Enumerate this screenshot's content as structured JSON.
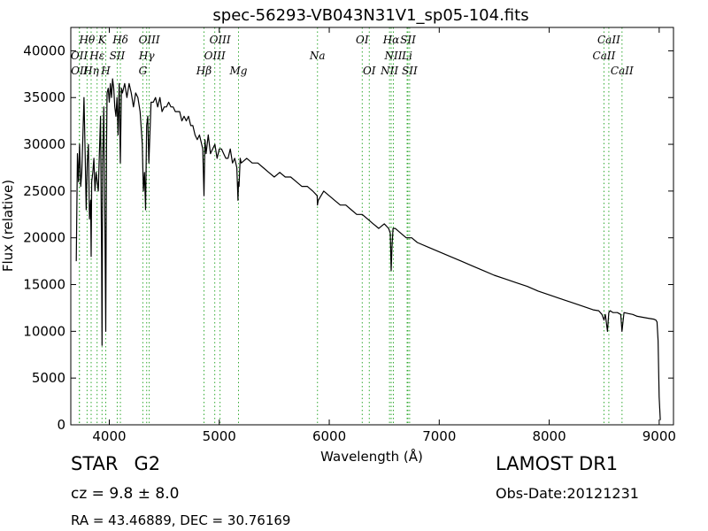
{
  "chart_data": {
    "type": "line",
    "title": "spec-56293-VB043N31V1_sp05-104.fits",
    "xlabel": "Wavelength (Å)",
    "ylabel": "Flux (relative)",
    "xlim": [
      3650,
      9130
    ],
    "ylim": [
      0,
      42500
    ],
    "x_ticks": [
      4000,
      5000,
      6000,
      7000,
      8000,
      9000
    ],
    "y_ticks": [
      0,
      5000,
      10000,
      15000,
      20000,
      25000,
      30000,
      35000,
      40000
    ],
    "grid": false,
    "line_color": "#000000",
    "marker_color": "#33aa33",
    "series": [
      {
        "x": [
          3700,
          3710,
          3720,
          3730,
          3740,
          3750,
          3760,
          3770,
          3780,
          3790,
          3800,
          3810,
          3820,
          3830,
          3835,
          3840,
          3850,
          3860,
          3870,
          3880,
          3890,
          3900,
          3910,
          3920,
          3930,
          3934,
          3940,
          3950,
          3960,
          3968,
          3975,
          3980,
          3990,
          4000,
          4010,
          4020,
          4030,
          4040,
          4050,
          4060,
          4070,
          4080,
          4090,
          4101,
          4110,
          4120,
          4140,
          4160,
          4180,
          4200,
          4220,
          4240,
          4260,
          4280,
          4300,
          4310,
          4320,
          4330,
          4340,
          4350,
          4360,
          4380,
          4400,
          4420,
          4440,
          4460,
          4480,
          4500,
          4520,
          4540,
          4560,
          4580,
          4600,
          4620,
          4640,
          4660,
          4680,
          4700,
          4720,
          4740,
          4760,
          4780,
          4800,
          4820,
          4840,
          4850,
          4861,
          4870,
          4880,
          4900,
          4920,
          4940,
          4960,
          4980,
          5000,
          5020,
          5040,
          5060,
          5080,
          5100,
          5120,
          5140,
          5160,
          5170,
          5175,
          5180,
          5190,
          5200,
          5250,
          5300,
          5350,
          5400,
          5450,
          5500,
          5550,
          5600,
          5650,
          5700,
          5750,
          5800,
          5850,
          5890,
          5893,
          5900,
          5950,
          6000,
          6050,
          6100,
          6150,
          6200,
          6250,
          6300,
          6350,
          6400,
          6450,
          6500,
          6540,
          6555,
          6563,
          6570,
          6580,
          6600,
          6650,
          6700,
          6750,
          6800,
          6900,
          7000,
          7100,
          7200,
          7300,
          7400,
          7500,
          7600,
          7700,
          7800,
          7900,
          8000,
          8100,
          8200,
          8300,
          8400,
          8450,
          8480,
          8498,
          8510,
          8530,
          8542,
          8555,
          8580,
          8620,
          8650,
          8662,
          8680,
          8720,
          8760,
          8800,
          8850,
          8900,
          8950,
          8970,
          8980,
          8990,
          9000,
          9010
        ],
        "y": [
          17500,
          29000,
          26000,
          30000,
          25500,
          27000,
          31000,
          35000,
          29000,
          23000,
          28000,
          30000,
          22000,
          24000,
          18000,
          26000,
          27000,
          28500,
          25000,
          27000,
          26000,
          25000,
          29000,
          33000,
          18000,
          8500,
          28000,
          34000,
          22000,
          10000,
          30000,
          35500,
          36000,
          34500,
          36500,
          35000,
          37000,
          36000,
          34000,
          33000,
          35000,
          31000,
          36500,
          28000,
          36000,
          35500,
          36500,
          35000,
          36500,
          35500,
          34000,
          35500,
          35000,
          33500,
          30000,
          25000,
          27000,
          23000,
          32000,
          33000,
          28000,
          34500,
          34500,
          35000,
          34000,
          35000,
          33500,
          34000,
          34000,
          34500,
          34000,
          34000,
          33500,
          33500,
          33500,
          32500,
          33000,
          32500,
          33000,
          32000,
          32000,
          31000,
          30500,
          31000,
          30000,
          29500,
          24500,
          30500,
          29000,
          31000,
          29000,
          29500,
          30000,
          28500,
          29500,
          29500,
          29000,
          28500,
          28500,
          29500,
          28000,
          28500,
          27500,
          24000,
          26000,
          25500,
          28500,
          28000,
          28500,
          28000,
          28000,
          27500,
          27000,
          26500,
          27000,
          26500,
          26500,
          26000,
          25500,
          25500,
          25000,
          24500,
          23500,
          24000,
          25000,
          24500,
          24000,
          23500,
          23500,
          23000,
          22500,
          22500,
          22000,
          21500,
          21000,
          21500,
          21000,
          20500,
          16500,
          19000,
          21000,
          21000,
          20500,
          20000,
          20000,
          19500,
          19000,
          18500,
          18000,
          17500,
          17000,
          16500,
          16000,
          15600,
          15200,
          14800,
          14300,
          13900,
          13500,
          13100,
          12700,
          12300,
          12200,
          11800,
          11200,
          11800,
          10000,
          12000,
          12200,
          12000,
          12000,
          11800,
          10000,
          12000,
          11900,
          11800,
          11600,
          11500,
          11400,
          11300,
          11200,
          11000,
          9000,
          3000,
          500
        ]
      }
    ],
    "lines_top": [
      {
        "label": "Hθ",
        "x": 3798
      },
      {
        "label": "K",
        "x": 3934
      },
      {
        "label": "Hδ",
        "x": 4101
      },
      {
        "label": "OIII",
        "x": 4363
      },
      {
        "label": "OIII",
        "x": 5007
      },
      {
        "label": "OI",
        "x": 6300
      },
      {
        "label": "Hα",
        "x": 6563
      },
      {
        "label": "SII",
        "x": 6716
      },
      {
        "label": "CaII",
        "x": 8542
      }
    ],
    "lines_mid": [
      {
        "label": "OII",
        "x": 3727
      },
      {
        "label": "Hε",
        "x": 3889
      },
      {
        "label": "SII",
        "x": 4072
      },
      {
        "label": "Hγ",
        "x": 4340
      },
      {
        "label": "OIII",
        "x": 4959
      },
      {
        "label": "Na",
        "x": 5893
      },
      {
        "label": "NII",
        "x": 6583
      },
      {
        "label": "Li",
        "x": 6708
      },
      {
        "label": "CaII",
        "x": 8498
      }
    ],
    "lines_low": [
      {
        "label": "OII",
        "x": 3729
      },
      {
        "label": "Hη",
        "x": 3835
      },
      {
        "label": "H",
        "x": 3968
      },
      {
        "label": "G",
        "x": 4305
      },
      {
        "label": "Hβ",
        "x": 4861
      },
      {
        "label": "Mg",
        "x": 5175
      },
      {
        "label": "OI",
        "x": 6364
      },
      {
        "label": "NII",
        "x": 6548
      },
      {
        "label": "SII",
        "x": 6731
      },
      {
        "label": "CaII",
        "x": 8662
      }
    ]
  },
  "info": {
    "class_label": "STAR",
    "subclass": "G2",
    "survey": "LAMOST DR1",
    "cz": "cz = 9.8 ± 8.0",
    "obs_date": "Obs-Date:20121231",
    "radec": "RA = 43.46889, DEC = 30.76169"
  }
}
